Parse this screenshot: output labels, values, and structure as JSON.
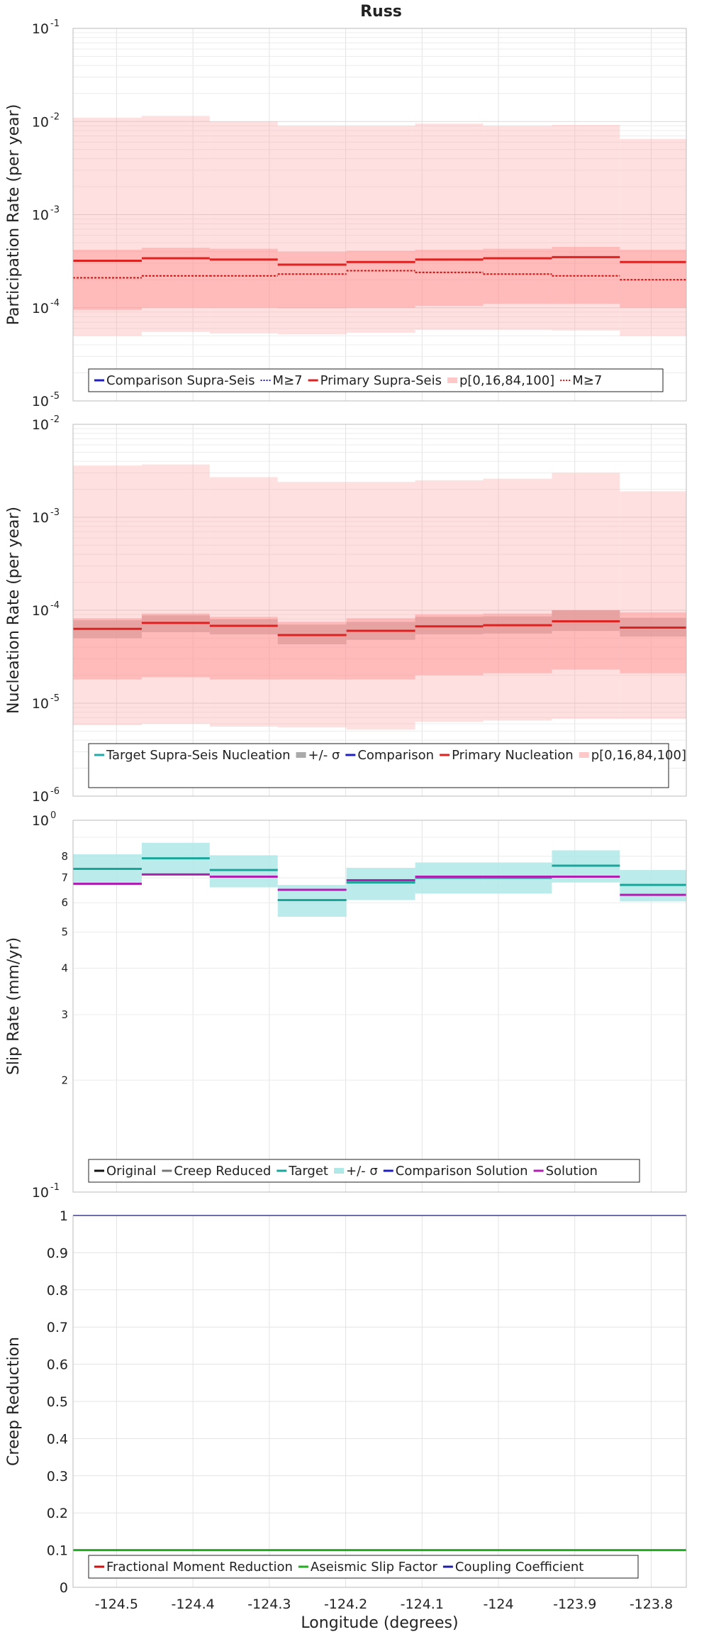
{
  "chart_data": [
    {
      "type": "line",
      "title": "Russ",
      "ylabel": "Participation Rate (per year)",
      "xlabel": "",
      "yscale": "log",
      "ylim": [
        1e-05,
        0.1
      ],
      "bin_edges": [
        -124.557,
        -124.467,
        -124.378,
        -124.289,
        -124.199,
        -124.109,
        -124.02,
        -123.93,
        -123.841,
        -123.754
      ],
      "series": [
        {
          "name": "Comparison Supra-Seis",
          "color": "#1f1fbf",
          "style": "solid",
          "values": []
        },
        {
          "name": "M≥7",
          "color": "#1f1fbf",
          "style": "dotted",
          "values": []
        },
        {
          "name": "Primary Supra-Seis",
          "color": "#dd2222",
          "style": "solid",
          "values": [
            0.00032,
            0.00034,
            0.00033,
            0.00029,
            0.00031,
            0.00033,
            0.00034,
            0.00035,
            0.00031
          ]
        },
        {
          "name": "p[0,16,84,100]",
          "color": "#ffb0b0",
          "style": "band",
          "p0": [
            5e-05,
            5.5e-05,
            5.3e-05,
            5.2e-05,
            5.4e-05,
            5.8e-05,
            5.8e-05,
            5.7e-05,
            5e-05
          ],
          "p16": [
            9.5e-05,
            0.0001,
            0.0001,
            9.9e-05,
            0.0001,
            0.000105,
            0.00011,
            0.00011,
            0.0001
          ],
          "p84": [
            0.00042,
            0.00044,
            0.00043,
            0.0004,
            0.00041,
            0.00042,
            0.00043,
            0.00045,
            0.00042
          ],
          "p100": [
            0.011,
            0.0115,
            0.01,
            0.009,
            0.009,
            0.0095,
            0.009,
            0.0092,
            0.0065
          ]
        },
        {
          "name": "M≥7",
          "color": "#cc1111",
          "style": "dotted",
          "values": [
            0.00021,
            0.00022,
            0.00022,
            0.00023,
            0.00025,
            0.00024,
            0.00023,
            0.00022,
            0.0002
          ]
        }
      ],
      "legend": "bottom",
      "grid": true
    },
    {
      "type": "line",
      "title": "",
      "ylabel": "Nucleation Rate (per year)",
      "xlabel": "",
      "yscale": "log",
      "ylim": [
        1e-06,
        0.01
      ],
      "bin_edges": [
        -124.557,
        -124.467,
        -124.378,
        -124.289,
        -124.199,
        -124.109,
        -124.02,
        -123.93,
        -123.841,
        -123.754
      ],
      "series": [
        {
          "name": "Target Supra-Seis Nucleation",
          "color": "#22aaaa",
          "style": "solid",
          "values": []
        },
        {
          "name": "+/- σ",
          "color": "#aaaaaa",
          "style": "band",
          "lower": [
            5e-05,
            5.8e-05,
            5.5e-05,
            4.3e-05,
            4.8e-05,
            5.5e-05,
            5.6e-05,
            6e-05,
            5.2e-05
          ],
          "upper": [
            7.8e-05,
            8.8e-05,
            8e-05,
            7e-05,
            7.5e-05,
            8.5e-05,
            8.6e-05,
            0.0001,
            8.3e-05
          ]
        },
        {
          "name": "Comparison",
          "color": "#1f1fbf",
          "style": "solid",
          "values": []
        },
        {
          "name": "Primary Nucleation",
          "color": "#dd2222",
          "style": "solid",
          "values": [
            6.3e-05,
            7.3e-05,
            6.8e-05,
            5.4e-05,
            6e-05,
            6.7e-05,
            6.9e-05,
            7.6e-05,
            6.5e-05
          ]
        },
        {
          "name": "p[0,16,84,100]",
          "color": "#ffb0b0",
          "style": "band",
          "p0": [
            5.8e-06,
            6e-06,
            5.6e-06,
            5.5e-06,
            5.2e-06,
            6.3e-06,
            6.5e-06,
            6.8e-06,
            6.8e-06
          ],
          "p16": [
            1.8e-05,
            1.9e-05,
            1.8e-05,
            1.8e-05,
            1.8e-05,
            2e-05,
            2.1e-05,
            2.3e-05,
            2.1e-05
          ],
          "p84": [
            8.2e-05,
            9.2e-05,
            8.5e-05,
            7.5e-05,
            8.2e-05,
            9e-05,
            9.2e-05,
            0.0001,
            9.5e-05
          ],
          "p100": [
            0.0036,
            0.0037,
            0.0027,
            0.0024,
            0.0024,
            0.0025,
            0.0026,
            0.003,
            0.0019
          ]
        }
      ],
      "legend": "bottom",
      "grid": true
    },
    {
      "type": "line",
      "title": "",
      "ylabel": "Slip Rate (mm/yr)",
      "xlabel": "",
      "yscale": "log",
      "ylim": [
        0.1,
        1
      ],
      "bin_edges": [
        -124.557,
        -124.467,
        -124.378,
        -124.289,
        -124.199,
        -124.109,
        -124.02,
        -123.93,
        -123.841,
        -123.754
      ],
      "series": [
        {
          "name": "Original",
          "color": "#111111",
          "style": "solid",
          "values": []
        },
        {
          "name": "Creep Reduced",
          "color": "#777777",
          "style": "solid",
          "values": []
        },
        {
          "name": "Target",
          "color": "#1aa59a",
          "style": "solid",
          "values": [
            0.74,
            0.79,
            0.735,
            0.61,
            0.68,
            0.7,
            0.7,
            0.755,
            0.67
          ]
        },
        {
          "name": "+/- σ",
          "color": "#b0e8e8",
          "style": "band",
          "lower": [
            0.67,
            0.71,
            0.66,
            0.55,
            0.61,
            0.635,
            0.635,
            0.68,
            0.605
          ],
          "upper": [
            0.81,
            0.87,
            0.805,
            0.67,
            0.745,
            0.77,
            0.77,
            0.83,
            0.735
          ]
        },
        {
          "name": "Comparison Solution",
          "color": "#1f1fbf",
          "style": "solid",
          "values": []
        },
        {
          "name": "Solution",
          "color": "#b020b0",
          "style": "solid",
          "values": [
            0.675,
            0.715,
            0.705,
            0.65,
            0.69,
            0.705,
            0.705,
            0.705,
            0.63
          ]
        }
      ],
      "legend": "bottom",
      "grid": true
    },
    {
      "type": "line",
      "title": "",
      "ylabel": "Creep Reduction",
      "xlabel": "Longitude (degrees)",
      "yscale": "linear",
      "ylim": [
        0,
        1
      ],
      "x_ticks": [
        "-124.5",
        "-124.4",
        "-124.3",
        "-124.2",
        "-124.1",
        "-124",
        "-123.9",
        "-123.8"
      ],
      "xlim": [
        -124.557,
        -123.754
      ],
      "series": [
        {
          "name": "Fractional Moment Reduction",
          "color": "#cc1111",
          "style": "solid",
          "values": []
        },
        {
          "name": "Aseismic Slip Factor",
          "color": "#22aa22",
          "style": "solid",
          "values": [
            0.1,
            0.1
          ]
        },
        {
          "name": "Coupling Coefficient",
          "color": "#1f1f9f",
          "style": "solid",
          "values": [
            1,
            1
          ]
        }
      ],
      "legend": "bottom",
      "grid": true
    }
  ]
}
